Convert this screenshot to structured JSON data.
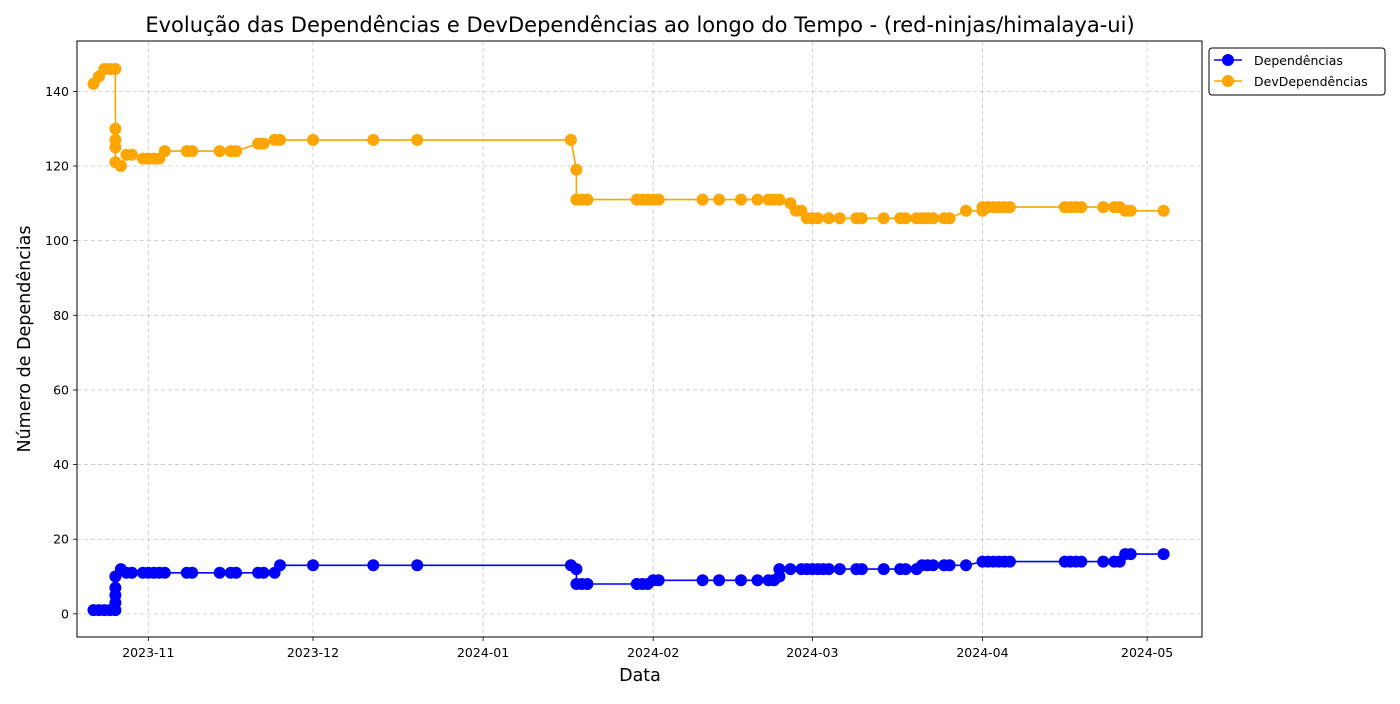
{
  "chart_data": {
    "type": "line",
    "title": "Evolução das Dependências e DevDependências ao longo do Tempo - (red-ninjas/himalaya-ui)",
    "xlabel": "Data",
    "ylabel": "Número de Dependências",
    "x_ticks": [
      "2023-11",
      "2023-12",
      "2024-01",
      "2024-02",
      "2024-03",
      "2024-04",
      "2024-05"
    ],
    "y_ticks": [
      0,
      20,
      40,
      60,
      80,
      100,
      120,
      140
    ],
    "xlim": [
      "2023-10-19",
      "2024-05-11"
    ],
    "ylim": [
      -6.2,
      153.5
    ],
    "grid": true,
    "legend_position": "outside top-right",
    "series": [
      {
        "name": "Dependências",
        "color": "#0000ff",
        "points": [
          [
            "2023-10-22",
            1
          ],
          [
            "2023-10-23",
            1
          ],
          [
            "2023-10-24",
            1
          ],
          [
            "2023-10-25",
            1
          ],
          [
            "2023-10-26",
            1
          ],
          [
            "2023-10-26",
            3
          ],
          [
            "2023-10-26",
            5
          ],
          [
            "2023-10-26",
            7
          ],
          [
            "2023-10-26",
            10
          ],
          [
            "2023-10-27",
            12
          ],
          [
            "2023-10-28",
            11
          ],
          [
            "2023-10-29",
            11
          ],
          [
            "2023-10-31",
            11
          ],
          [
            "2023-11-01",
            11
          ],
          [
            "2023-11-02",
            11
          ],
          [
            "2023-11-03",
            11
          ],
          [
            "2023-11-04",
            11
          ],
          [
            "2023-11-08",
            11
          ],
          [
            "2023-11-09",
            11
          ],
          [
            "2023-11-14",
            11
          ],
          [
            "2023-11-16",
            11
          ],
          [
            "2023-11-17",
            11
          ],
          [
            "2023-11-21",
            11
          ],
          [
            "2023-11-22",
            11
          ],
          [
            "2023-11-24",
            11
          ],
          [
            "2023-11-25",
            13
          ],
          [
            "2023-12-01",
            13
          ],
          [
            "2023-12-12",
            13
          ],
          [
            "2023-12-20",
            13
          ],
          [
            "2024-01-17",
            13
          ],
          [
            "2024-01-18",
            12
          ],
          [
            "2024-01-18",
            8
          ],
          [
            "2024-01-19",
            8
          ],
          [
            "2024-01-20",
            8
          ],
          [
            "2024-01-29",
            8
          ],
          [
            "2024-01-30",
            8
          ],
          [
            "2024-01-31",
            8
          ],
          [
            "2024-02-01",
            9
          ],
          [
            "2024-02-02",
            9
          ],
          [
            "2024-02-10",
            9
          ],
          [
            "2024-02-13",
            9
          ],
          [
            "2024-02-17",
            9
          ],
          [
            "2024-02-20",
            9
          ],
          [
            "2024-02-22",
            9
          ],
          [
            "2024-02-23",
            9
          ],
          [
            "2024-02-24",
            10
          ],
          [
            "2024-02-24",
            12
          ],
          [
            "2024-02-26",
            12
          ],
          [
            "2024-02-28",
            12
          ],
          [
            "2024-02-29",
            12
          ],
          [
            "2024-03-01",
            12
          ],
          [
            "2024-03-02",
            12
          ],
          [
            "2024-03-03",
            12
          ],
          [
            "2024-03-04",
            12
          ],
          [
            "2024-03-06",
            12
          ],
          [
            "2024-03-09",
            12
          ],
          [
            "2024-03-10",
            12
          ],
          [
            "2024-03-14",
            12
          ],
          [
            "2024-03-17",
            12
          ],
          [
            "2024-03-18",
            12
          ],
          [
            "2024-03-20",
            12
          ],
          [
            "2024-03-21",
            13
          ],
          [
            "2024-03-22",
            13
          ],
          [
            "2024-03-23",
            13
          ],
          [
            "2024-03-25",
            13
          ],
          [
            "2024-03-26",
            13
          ],
          [
            "2024-03-29",
            13
          ],
          [
            "2024-04-01",
            14
          ],
          [
            "2024-04-02",
            14
          ],
          [
            "2024-04-03",
            14
          ],
          [
            "2024-04-04",
            14
          ],
          [
            "2024-04-05",
            14
          ],
          [
            "2024-04-06",
            14
          ],
          [
            "2024-04-16",
            14
          ],
          [
            "2024-04-17",
            14
          ],
          [
            "2024-04-18",
            14
          ],
          [
            "2024-04-19",
            14
          ],
          [
            "2024-04-23",
            14
          ],
          [
            "2024-04-25",
            14
          ],
          [
            "2024-04-26",
            14
          ],
          [
            "2024-04-27",
            16
          ],
          [
            "2024-04-28",
            16
          ],
          [
            "2024-05-04",
            16
          ]
        ]
      },
      {
        "name": "DevDependências",
        "color": "#ffa500",
        "points": [
          [
            "2023-10-22",
            142
          ],
          [
            "2023-10-23",
            144
          ],
          [
            "2023-10-24",
            146
          ],
          [
            "2023-10-25",
            146
          ],
          [
            "2023-10-26",
            146
          ],
          [
            "2023-10-26",
            130
          ],
          [
            "2023-10-26",
            127
          ],
          [
            "2023-10-26",
            125
          ],
          [
            "2023-10-26",
            121
          ],
          [
            "2023-10-27",
            120
          ],
          [
            "2023-10-28",
            123
          ],
          [
            "2023-10-29",
            123
          ],
          [
            "2023-10-31",
            122
          ],
          [
            "2023-11-01",
            122
          ],
          [
            "2023-11-02",
            122
          ],
          [
            "2023-11-03",
            122
          ],
          [
            "2023-11-04",
            124
          ],
          [
            "2023-11-08",
            124
          ],
          [
            "2023-11-09",
            124
          ],
          [
            "2023-11-14",
            124
          ],
          [
            "2023-11-16",
            124
          ],
          [
            "2023-11-17",
            124
          ],
          [
            "2023-11-21",
            126
          ],
          [
            "2023-11-22",
            126
          ],
          [
            "2023-11-24",
            127
          ],
          [
            "2023-11-25",
            127
          ],
          [
            "2023-12-01",
            127
          ],
          [
            "2023-12-12",
            127
          ],
          [
            "2023-12-20",
            127
          ],
          [
            "2024-01-17",
            127
          ],
          [
            "2024-01-18",
            119
          ],
          [
            "2024-01-18",
            111
          ],
          [
            "2024-01-19",
            111
          ],
          [
            "2024-01-20",
            111
          ],
          [
            "2024-01-29",
            111
          ],
          [
            "2024-01-30",
            111
          ],
          [
            "2024-01-31",
            111
          ],
          [
            "2024-02-01",
            111
          ],
          [
            "2024-02-02",
            111
          ],
          [
            "2024-02-10",
            111
          ],
          [
            "2024-02-13",
            111
          ],
          [
            "2024-02-17",
            111
          ],
          [
            "2024-02-20",
            111
          ],
          [
            "2024-02-22",
            111
          ],
          [
            "2024-02-23",
            111
          ],
          [
            "2024-02-24",
            111
          ],
          [
            "2024-02-26",
            110
          ],
          [
            "2024-02-27",
            108
          ],
          [
            "2024-02-28",
            108
          ],
          [
            "2024-02-29",
            106
          ],
          [
            "2024-03-01",
            106
          ],
          [
            "2024-03-02",
            106
          ],
          [
            "2024-03-04",
            106
          ],
          [
            "2024-03-06",
            106
          ],
          [
            "2024-03-09",
            106
          ],
          [
            "2024-03-10",
            106
          ],
          [
            "2024-03-14",
            106
          ],
          [
            "2024-03-17",
            106
          ],
          [
            "2024-03-18",
            106
          ],
          [
            "2024-03-20",
            106
          ],
          [
            "2024-03-21",
            106
          ],
          [
            "2024-03-22",
            106
          ],
          [
            "2024-03-23",
            106
          ],
          [
            "2024-03-25",
            106
          ],
          [
            "2024-03-26",
            106
          ],
          [
            "2024-03-29",
            108
          ],
          [
            "2024-04-01",
            108
          ],
          [
            "2024-04-01",
            109
          ],
          [
            "2024-04-02",
            109
          ],
          [
            "2024-04-03",
            109
          ],
          [
            "2024-04-04",
            109
          ],
          [
            "2024-04-05",
            109
          ],
          [
            "2024-04-06",
            109
          ],
          [
            "2024-04-16",
            109
          ],
          [
            "2024-04-17",
            109
          ],
          [
            "2024-04-18",
            109
          ],
          [
            "2024-04-19",
            109
          ],
          [
            "2024-04-23",
            109
          ],
          [
            "2024-04-25",
            109
          ],
          [
            "2024-04-26",
            109
          ],
          [
            "2024-04-27",
            108
          ],
          [
            "2024-04-28",
            108
          ],
          [
            "2024-05-04",
            108
          ]
        ]
      }
    ]
  }
}
